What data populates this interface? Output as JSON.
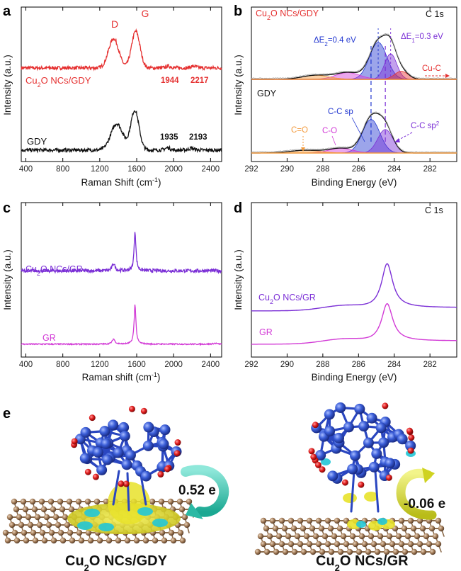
{
  "panel_letters": [
    "a",
    "b",
    "c",
    "d",
    "e"
  ],
  "colors": {
    "red": "#e53030",
    "black": "#111111",
    "purple": "#7b2fd6",
    "magenta": "#d23bd6",
    "blue": "#2338d0",
    "orange": "#f39a3c",
    "cu_atom": "#3b5ed8",
    "o_atom": "#e01c1c",
    "c_atom": "#a57e5a",
    "charge_yellow": "#e8e22a",
    "charge_cyan": "#22c6d6",
    "arrow_teal": "#36cbb8",
    "arrow_yellow": "#d6d830"
  },
  "chart_data": [
    {
      "id": "a",
      "type": "line",
      "xlabel": "Raman Shift (cm",
      "xlabel_sup": "-1",
      "xlabel_end": ")",
      "ylabel": "Intensity (a.u.)",
      "xlim": [
        350,
        2520
      ],
      "x_ticks": [
        400,
        800,
        1200,
        1600,
        2000,
        2400
      ],
      "peak_labels": [
        "D",
        "G"
      ],
      "annotations": {
        "cu_gdy": [
          "1944",
          "2217"
        ],
        "gdy": [
          "1935",
          "2193"
        ]
      },
      "series": [
        {
          "name": "Cu₂O NCs/GDY",
          "name_main": "Cu",
          "name_sub": "2",
          "name_rest": "O NCs/GDY",
          "color": "#e53030",
          "offset": 0.56,
          "peaks": [
            [
              1350,
              0.2,
              55
            ],
            [
              1590,
              0.25,
              45
            ],
            [
              1944,
              0.012,
              30
            ],
            [
              2217,
              0.012,
              30
            ]
          ],
          "base": 0.02,
          "noise": 0.012
        },
        {
          "name": "GDY",
          "color": "#111111",
          "offset": 0.0,
          "peaks": [
            [
              1385,
              0.18,
              65
            ],
            [
              1580,
              0.27,
              45
            ],
            [
              1935,
              0.015,
              30
            ],
            [
              2193,
              0.012,
              30
            ]
          ],
          "base": 0.02,
          "noise": 0.012
        }
      ]
    },
    {
      "id": "b",
      "type": "line",
      "xlabel": "Binding Energy (eV)",
      "ylabel": "Intensity (a.u.)",
      "title": "C 1s",
      "xlim": [
        292,
        280.5
      ],
      "x_ticks": [
        292,
        290,
        288,
        286,
        284,
        282
      ],
      "labels": {
        "cu_gdy": "Cu",
        "cu_gdy_sub": "2",
        "cu_gdy_rest": "O NCs/GDY",
        "gdy": "GDY",
        "de2": "ΔE",
        "de2_sub": "2",
        "de2_rest": "=0.4 eV",
        "de1": "ΔE",
        "de1_sub": "1",
        "de1_rest": "=0.3 eV",
        "cu_c": "Cu-C",
        "c_c_sp": "C-C sp",
        "c_c_sp2": "C-C sp",
        "c_c_sp2_sup": "2",
        "c_eq_o": "C=O",
        "c_o": "C-O"
      },
      "upper_components": [
        {
          "name": "C-C sp",
          "center": 284.9,
          "fwhm": 1.15,
          "amp": 0.55,
          "color": "#2338d0"
        },
        {
          "name": "C-C sp2",
          "center": 284.2,
          "fwhm": 0.8,
          "amp": 0.38,
          "color": "#7b2fd6"
        },
        {
          "name": "Cu-C",
          "center": 283.6,
          "fwhm": 0.9,
          "amp": 0.12,
          "color": "#e53030"
        },
        {
          "name": "C-O",
          "center": 286.6,
          "fwhm": 1.6,
          "amp": 0.1,
          "color": "#d23bd6"
        },
        {
          "name": "C=O",
          "center": 288.4,
          "fwhm": 1.8,
          "amp": 0.06,
          "color": "#f39a3c"
        }
      ],
      "lower_components": [
        {
          "name": "C-C sp",
          "center": 285.3,
          "fwhm": 1.15,
          "amp": 0.5,
          "color": "#2338d0"
        },
        {
          "name": "C-C sp2",
          "center": 284.5,
          "fwhm": 1.0,
          "amp": 0.35,
          "color": "#7b2fd6"
        },
        {
          "name": "C-O",
          "center": 287.0,
          "fwhm": 1.6,
          "amp": 0.07,
          "color": "#d23bd6"
        },
        {
          "name": "C=O",
          "center": 289.0,
          "fwhm": 2.0,
          "amp": 0.04,
          "color": "#f39a3c"
        }
      ]
    },
    {
      "id": "c",
      "type": "line",
      "xlabel": "Raman shift (cm",
      "xlabel_sup": "-1",
      "xlabel_end": ")",
      "ylabel": "Intensity (a.u.)",
      "xlim": [
        350,
        2520
      ],
      "x_ticks": [
        400,
        800,
        1200,
        1600,
        2000,
        2400
      ],
      "series": [
        {
          "name": "Cu₂O NCs/GR",
          "name_main": "Cu",
          "name_sub": "2",
          "name_rest": "O NCs/GR",
          "color": "#7b2fd6",
          "offset": 0.5,
          "peaks": [
            [
              1350,
              0.05,
              18
            ],
            [
              1582,
              0.27,
              12
            ]
          ],
          "base": 0.03,
          "noise": 0.012
        },
        {
          "name": "GR",
          "color": "#d23bd6",
          "offset": 0.0,
          "peaks": [
            [
              1350,
              0.035,
              18
            ],
            [
              1582,
              0.27,
              12
            ],
            [
              2450,
              0.006,
              25
            ]
          ],
          "base": 0.03,
          "noise": 0.004
        }
      ]
    },
    {
      "id": "d",
      "type": "line",
      "xlabel": "Binding Energy (eV)",
      "ylabel": "Intensity (a.u.)",
      "title": "C 1s",
      "xlim": [
        292,
        280.5
      ],
      "x_ticks": [
        292,
        290,
        288,
        286,
        284,
        282
      ],
      "series": [
        {
          "name": "Cu₂O NCs/GR",
          "name_main": "Cu",
          "name_sub": "2",
          "name_rest": "O NCs/GR",
          "color": "#7b2fd6",
          "offset": 0.5,
          "center": 284.4,
          "amp": 0.47
        },
        {
          "name": "GR",
          "color": "#d23bd6",
          "offset": 0.0,
          "center": 284.4,
          "amp": 0.4
        }
      ]
    }
  ],
  "panel_e": {
    "left_label_main": "Cu",
    "left_label_sub": "2",
    "left_label_rest": "O NCs/GDY",
    "right_label_main": "Cu",
    "right_label_sub": "2",
    "right_label_rest": "O NCs/GR",
    "left_charge": "0.52 e",
    "right_charge": "-0.06 e"
  }
}
